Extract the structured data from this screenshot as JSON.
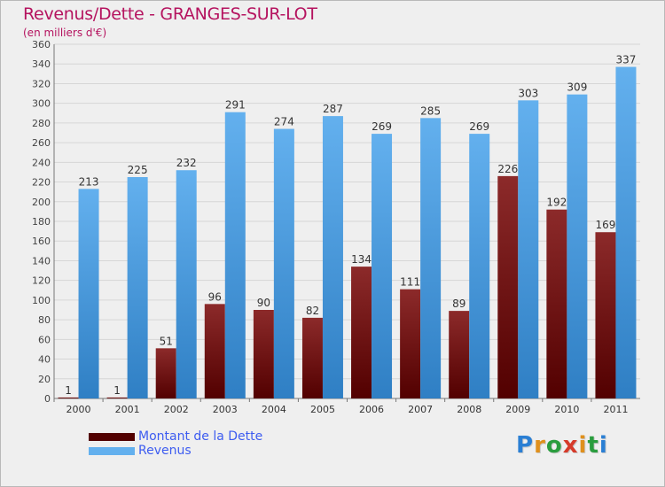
{
  "title": "Revenus/Dette - GRANGES-SUR-LOT",
  "subtitle": "(en milliers d'€)",
  "logo": "Proxiti",
  "colors": {
    "title": "#b5135f",
    "debt_top": "#8c2a2a",
    "debt_bottom": "#520000",
    "revenue_top": "#63b0ee",
    "revenue_bottom": "#2f7fc4",
    "legend_text": "#3d5cf0",
    "background": "#efefef"
  },
  "chart_data": {
    "type": "bar",
    "categories": [
      "2000",
      "2001",
      "2002",
      "2003",
      "2004",
      "2005",
      "2006",
      "2007",
      "2008",
      "2009",
      "2010",
      "2011"
    ],
    "series": [
      {
        "name": "Montant de la Dette",
        "values": [
          1,
          1,
          51,
          96,
          90,
          82,
          134,
          111,
          89,
          226,
          192,
          169
        ]
      },
      {
        "name": "Revenus",
        "values": [
          213,
          225,
          232,
          291,
          274,
          287,
          269,
          285,
          269,
          303,
          309,
          337
        ]
      }
    ],
    "ylim": [
      0,
      360
    ],
    "ytick_step": 20,
    "grid": true,
    "legend_position": "bottom-left"
  }
}
